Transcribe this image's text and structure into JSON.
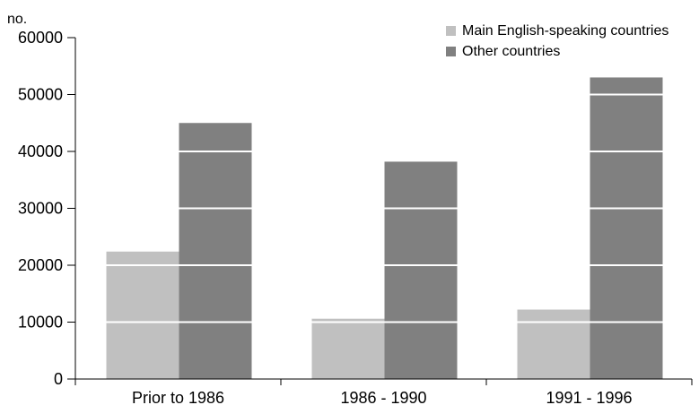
{
  "chart_data": {
    "type": "bar",
    "title": "",
    "ylabel": "no.",
    "xlabel": "",
    "categories": [
      "Prior to 1986",
      "1986 - 1990",
      "1991 - 1996"
    ],
    "series": [
      {
        "name": "Main English-speaking countries",
        "values": [
          22400,
          10600,
          12200
        ],
        "color": "#c0c0c0"
      },
      {
        "name": "Other countries",
        "values": [
          45000,
          38200,
          53000
        ],
        "color": "#808080"
      }
    ],
    "ylim": [
      0,
      60000
    ],
    "yticks": [
      "0",
      "10000",
      "20000",
      "30000",
      "40000",
      "50000",
      "60000"
    ],
    "gridlines_over_bars": [
      10000,
      20000,
      30000,
      40000,
      50000
    ],
    "gridline_color": "#ffffff",
    "legend_position": "top-right",
    "grid": false
  }
}
